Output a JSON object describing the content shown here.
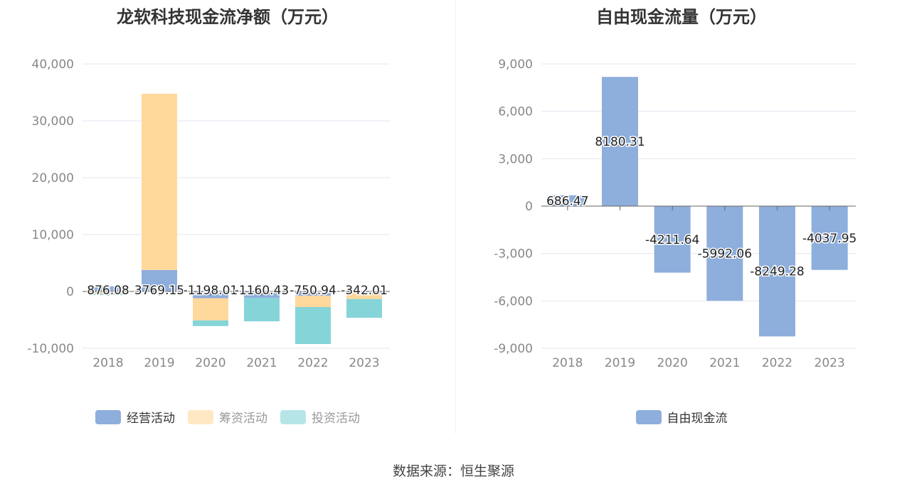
{
  "source_text": "数据来源：恒生聚源",
  "chart_data": [
    {
      "type": "bar",
      "stacked": true,
      "title": "龙软科技现金流净额（万元）",
      "categories": [
        "2018",
        "2019",
        "2020",
        "2021",
        "2022",
        "2023"
      ],
      "ylim": [
        -10000,
        40000
      ],
      "yticks": [
        -10000,
        0,
        10000,
        20000,
        30000,
        40000
      ],
      "ytick_labels": [
        "-10,000",
        "0",
        "10,000",
        "20,000",
        "30,000",
        "40,000"
      ],
      "grid": true,
      "legend_position": "bottom",
      "series": [
        {
          "name": "经营活动",
          "color": "#8eaedc",
          "values": [
            876.08,
            3769.15,
            -1198.01,
            -1160.43,
            -750.94,
            -342.01
          ]
        },
        {
          "name": "筹资活动",
          "color": "#ffd89b",
          "values": [
            -400,
            31000,
            -3900,
            0,
            -2000,
            -1000
          ]
        },
        {
          "name": "投资活动",
          "color": "#85d4d8",
          "values": [
            -200,
            0,
            -1000,
            -4100,
            -6500,
            -3300
          ]
        }
      ],
      "data_labels": [
        "876.08",
        "3769.15",
        "-1198.01",
        "-1160.43",
        "-750.94",
        "-342.01"
      ]
    },
    {
      "type": "bar",
      "title": "自由现金流量（万元）",
      "categories": [
        "2018",
        "2019",
        "2020",
        "2021",
        "2022",
        "2023"
      ],
      "ylim": [
        -9000,
        9000
      ],
      "yticks": [
        -9000,
        -6000,
        -3000,
        0,
        3000,
        6000,
        9000
      ],
      "ytick_labels": [
        "-9,000",
        "-6,000",
        "-3,000",
        "0",
        "3,000",
        "6,000",
        "9,000"
      ],
      "grid": true,
      "legend_position": "bottom",
      "series": [
        {
          "name": "自由现金流",
          "color": "#8eaedc",
          "values": [
            686.47,
            8180.31,
            -4211.64,
            -5992.06,
            -8249.28,
            -4037.95
          ]
        }
      ],
      "data_labels": [
        "686.47",
        "8180.31",
        "-4211.64",
        "-5992.06",
        "-8249.28",
        "-4037.95"
      ]
    }
  ]
}
